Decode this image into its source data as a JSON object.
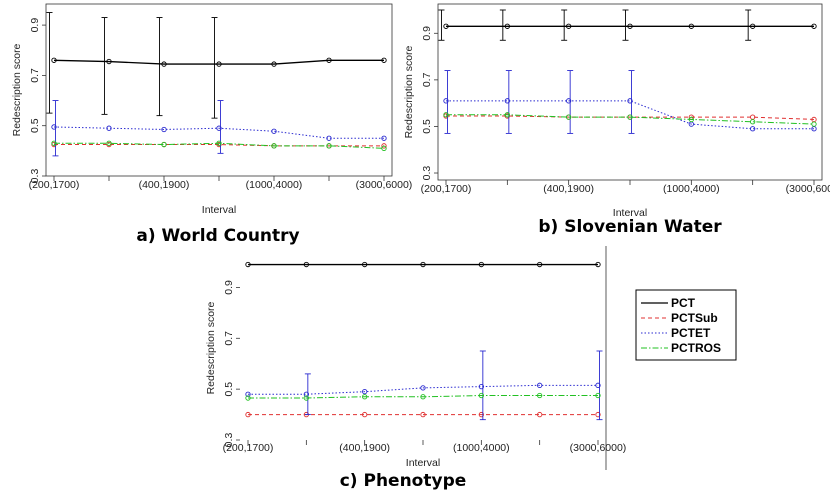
{
  "chart_data": [
    {
      "type": "line",
      "title": "a) World Country",
      "xlabel": "Interval",
      "ylabel": "Redescription score",
      "ylim": [
        0.3,
        0.96
      ],
      "yticks": [
        0.3,
        0.5,
        0.7,
        0.9
      ],
      "xtick_labels": [
        "(200,1700)",
        "(400,1900)",
        "(1000,4000)",
        "(3000,6000)"
      ],
      "xtick_at": [
        0,
        2,
        4,
        6
      ],
      "x": [
        0,
        1,
        2,
        3,
        4,
        5,
        6
      ],
      "series": [
        {
          "name": "PCT",
          "values": [
            0.76,
            0.755,
            0.745,
            0.745,
            0.745,
            0.76,
            0.76
          ],
          "err_low": [
            0.55,
            0.545,
            0.54,
            0.53,
            null,
            null,
            null
          ],
          "err_high": [
            0.95,
            0.93,
            0.93,
            0.93,
            null,
            null,
            null
          ]
        },
        {
          "name": "PCTSub",
          "values": [
            0.425,
            0.425,
            0.425,
            0.425,
            0.42,
            0.42,
            0.42
          ]
        },
        {
          "name": "PCTET",
          "values": [
            0.495,
            0.49,
            0.485,
            0.49,
            0.478,
            0.45,
            0.45
          ],
          "err_low": [
            0.38,
            null,
            null,
            0.39,
            null,
            null,
            null
          ],
          "err_high": [
            0.6,
            null,
            null,
            0.6,
            null,
            null,
            null
          ]
        },
        {
          "name": "PCTROS",
          "values": [
            0.43,
            0.43,
            0.425,
            0.43,
            0.42,
            0.42,
            0.41
          ]
        }
      ]
    },
    {
      "type": "line",
      "title": "b) Slovenian Water",
      "xlabel": "Interval",
      "ylabel": "Redescription score",
      "ylim": [
        0.27,
        1.0
      ],
      "yticks": [
        0.3,
        0.5,
        0.7,
        0.9
      ],
      "xtick_labels": [
        "(200,1700)",
        "(400,1900)",
        "(1000,4000)",
        "(3000,6000)"
      ],
      "xtick_at": [
        0,
        2,
        4,
        6
      ],
      "x": [
        0,
        1,
        2,
        3,
        4,
        5,
        6
      ],
      "series": [
        {
          "name": "PCT",
          "values": [
            0.93,
            0.93,
            0.93,
            0.93,
            0.93,
            0.93,
            0.93
          ],
          "err_low": [
            0.87,
            0.87,
            0.87,
            0.87,
            null,
            0.87,
            null
          ],
          "err_high": [
            1.0,
            1.0,
            1.0,
            1.0,
            null,
            1.0,
            null
          ]
        },
        {
          "name": "PCTSub",
          "values": [
            0.545,
            0.545,
            0.54,
            0.54,
            0.54,
            0.54,
            0.53
          ]
        },
        {
          "name": "PCTET",
          "values": [
            0.61,
            0.61,
            0.61,
            0.61,
            0.51,
            0.49,
            0.49
          ],
          "err_low": [
            0.47,
            0.47,
            0.47,
            0.47,
            null,
            null,
            null
          ],
          "err_high": [
            0.74,
            0.74,
            0.74,
            0.74,
            null,
            null,
            null
          ]
        },
        {
          "name": "PCTROS",
          "values": [
            0.55,
            0.55,
            0.54,
            0.54,
            0.53,
            0.52,
            0.51
          ]
        }
      ]
    },
    {
      "type": "line",
      "title": "c) Phenotype",
      "xlabel": "Interval",
      "ylabel": "Redescription score",
      "ylim": [
        0.3,
        1.0
      ],
      "yticks": [
        0.3,
        0.5,
        0.7,
        0.9
      ],
      "xtick_labels": [
        "(200,1700)",
        "(400,1900)",
        "(1000,4000)",
        "(3000,6000)"
      ],
      "xtick_at": [
        0,
        2,
        4,
        6
      ],
      "x": [
        0,
        1,
        2,
        3,
        4,
        5,
        6
      ],
      "series": [
        {
          "name": "PCT",
          "values": [
            0.99,
            0.99,
            0.99,
            0.99,
            0.99,
            0.99,
            0.99
          ]
        },
        {
          "name": "PCTSub",
          "values": [
            0.4,
            0.4,
            0.4,
            0.4,
            0.4,
            0.4,
            0.4
          ]
        },
        {
          "name": "PCTET",
          "values": [
            0.48,
            0.48,
            0.49,
            0.505,
            0.51,
            0.515,
            0.515
          ],
          "err_low": [
            null,
            0.4,
            null,
            null,
            0.38,
            null,
            0.38
          ],
          "err_high": [
            null,
            0.56,
            null,
            null,
            0.65,
            null,
            0.65
          ]
        },
        {
          "name": "PCTROS",
          "values": [
            0.465,
            0.465,
            0.47,
            0.47,
            0.475,
            0.475,
            0.475
          ]
        }
      ]
    }
  ],
  "legend": {
    "entries": [
      {
        "name": "PCT",
        "color": "#000000",
        "dash": "solid"
      },
      {
        "name": "PCTSub",
        "color": "#e03030",
        "dash": "dashed"
      },
      {
        "name": "PCTET",
        "color": "#2a2ad0",
        "dash": "dotted"
      },
      {
        "name": "PCTROS",
        "color": "#22c022",
        "dash": "dashdot"
      }
    ],
    "position": "right of panel c"
  }
}
